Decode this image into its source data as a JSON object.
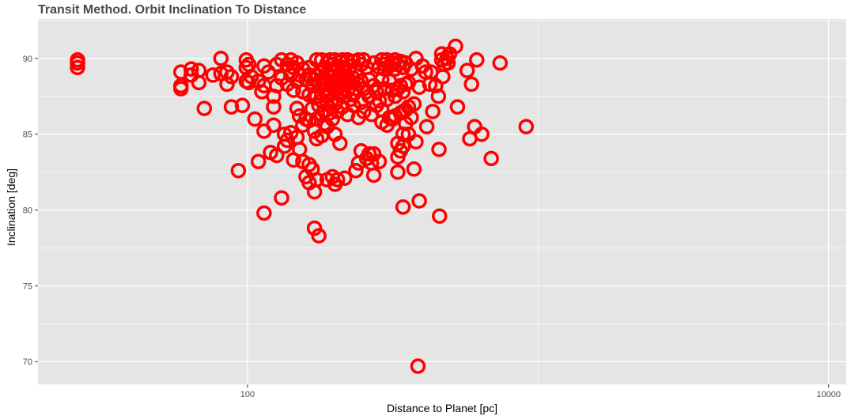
{
  "chart_data": {
    "type": "scatter",
    "title": "Transit Method. Orbit Inclination To Distance",
    "xlabel": "Distance to Planet [pc]",
    "ylabel": "Inclination [deg]",
    "x_scale": "log10",
    "xlim": [
      19,
      11500
    ],
    "ylim": [
      68.5,
      92.6
    ],
    "x_ticks": [
      100,
      10000
    ],
    "x_tick_labels": [
      "100",
      "10000"
    ],
    "y_ticks": [
      70,
      75,
      80,
      85,
      90
    ],
    "y_tick_labels": [
      "70",
      "75",
      "80",
      "85",
      "90"
    ],
    "grid": true,
    "marker": "open-circle",
    "colors": {
      "points": "#ff0000",
      "panel": "#e5e5e5",
      "grid": "#ffffff",
      "axis_text": "#4d4d4d"
    },
    "points": [
      [
        26,
        89.9
      ],
      [
        26,
        89.7
      ],
      [
        26,
        89.4
      ],
      [
        59,
        89.1
      ],
      [
        59,
        88.2
      ],
      [
        59,
        88.0
      ],
      [
        64,
        89.3
      ],
      [
        64,
        88.9
      ],
      [
        68,
        89.2
      ],
      [
        68,
        88.4
      ],
      [
        71,
        86.7
      ],
      [
        76,
        88.9
      ],
      [
        81,
        90.0
      ],
      [
        81,
        89.0
      ],
      [
        85,
        89.1
      ],
      [
        85,
        88.3
      ],
      [
        88,
        88.8
      ],
      [
        88,
        86.8
      ],
      [
        93,
        82.6
      ],
      [
        96,
        86.9
      ],
      [
        99,
        89.9
      ],
      [
        99,
        89.4
      ],
      [
        99,
        88.5
      ],
      [
        101,
        89.6
      ],
      [
        101,
        88.4
      ],
      [
        103,
        88.8
      ],
      [
        106,
        86.0
      ],
      [
        109,
        88.5
      ],
      [
        109,
        83.2
      ],
      [
        112,
        87.8
      ],
      [
        114,
        89.5
      ],
      [
        114,
        88.2
      ],
      [
        114,
        85.2
      ],
      [
        114,
        79.8
      ],
      [
        118,
        89.1
      ],
      [
        120,
        83.8
      ],
      [
        123,
        87.5
      ],
      [
        123,
        86.8
      ],
      [
        123,
        85.6
      ],
      [
        126,
        89.6
      ],
      [
        126,
        88.2
      ],
      [
        126,
        83.6
      ],
      [
        131,
        89.9
      ],
      [
        131,
        88.7
      ],
      [
        131,
        80.8
      ],
      [
        134,
        85.0
      ],
      [
        134,
        84.2
      ],
      [
        137,
        89.6
      ],
      [
        137,
        88.3
      ],
      [
        137,
        84.6
      ],
      [
        141,
        89.9
      ],
      [
        141,
        88.9
      ],
      [
        141,
        85.1
      ],
      [
        144,
        89.4
      ],
      [
        144,
        87.9
      ],
      [
        144,
        83.3
      ],
      [
        148,
        89.7
      ],
      [
        148,
        88.5
      ],
      [
        148,
        86.7
      ],
      [
        148,
        84.8
      ],
      [
        151,
        88.9
      ],
      [
        151,
        86.2
      ],
      [
        151,
        84.0
      ],
      [
        155,
        89.3
      ],
      [
        155,
        87.8
      ],
      [
        155,
        85.6
      ],
      [
        155,
        83.2
      ],
      [
        159,
        88.6
      ],
      [
        159,
        86.0
      ],
      [
        159,
        82.2
      ],
      [
        163,
        89.4
      ],
      [
        163,
        88.9
      ],
      [
        163,
        87.6
      ],
      [
        163,
        85.9
      ],
      [
        163,
        83.0
      ],
      [
        163,
        81.8
      ],
      [
        167,
        88.2
      ],
      [
        167,
        86.7
      ],
      [
        167,
        82.7
      ],
      [
        170,
        88.6
      ],
      [
        170,
        87.4
      ],
      [
        170,
        85.2
      ],
      [
        170,
        81.2
      ],
      [
        170,
        78.8
      ],
      [
        173,
        89.9
      ],
      [
        173,
        88.9
      ],
      [
        173,
        87.5
      ],
      [
        173,
        86.0
      ],
      [
        173,
        84.7
      ],
      [
        173,
        82.0
      ],
      [
        176,
        88.3
      ],
      [
        176,
        86.9
      ],
      [
        176,
        78.3
      ],
      [
        180,
        89.9
      ],
      [
        180,
        89.1
      ],
      [
        180,
        88.2
      ],
      [
        180,
        87.2
      ],
      [
        180,
        86.3
      ],
      [
        180,
        84.9
      ],
      [
        184,
        89.4
      ],
      [
        184,
        88.7
      ],
      [
        184,
        87.9
      ],
      [
        184,
        86.5
      ],
      [
        184,
        85.7
      ],
      [
        188,
        89.7
      ],
      [
        188,
        88.9
      ],
      [
        188,
        88.0
      ],
      [
        188,
        87.0
      ],
      [
        188,
        85.5
      ],
      [
        188,
        82.0
      ],
      [
        192,
        89.9
      ],
      [
        192,
        89.2
      ],
      [
        192,
        88.4
      ],
      [
        192,
        87.7
      ],
      [
        192,
        86.4
      ],
      [
        196,
        89.6
      ],
      [
        196,
        88.8
      ],
      [
        196,
        88.1
      ],
      [
        196,
        87.3
      ],
      [
        196,
        86.0
      ],
      [
        196,
        82.2
      ],
      [
        200,
        89.9
      ],
      [
        200,
        89.1
      ],
      [
        200,
        88.5
      ],
      [
        200,
        87.9
      ],
      [
        200,
        87.0
      ],
      [
        200,
        85.0
      ],
      [
        200,
        81.7
      ],
      [
        204,
        89.5
      ],
      [
        204,
        88.7
      ],
      [
        204,
        88.0
      ],
      [
        204,
        87.3
      ],
      [
        204,
        86.5
      ],
      [
        204,
        82.0
      ],
      [
        208,
        89.8
      ],
      [
        208,
        89.0
      ],
      [
        208,
        88.4
      ],
      [
        208,
        87.6
      ],
      [
        208,
        84.4
      ],
      [
        212,
        89.9
      ],
      [
        212,
        89.2
      ],
      [
        212,
        88.6
      ],
      [
        212,
        87.8
      ],
      [
        212,
        86.8
      ],
      [
        216,
        89.4
      ],
      [
        216,
        88.5
      ],
      [
        216,
        87.5
      ],
      [
        216,
        82.1
      ],
      [
        221,
        89.9
      ],
      [
        221,
        88.8
      ],
      [
        221,
        87.9
      ],
      [
        221,
        86.3
      ],
      [
        226,
        89.5
      ],
      [
        226,
        88.4
      ],
      [
        226,
        87.3
      ],
      [
        231,
        89.8
      ],
      [
        231,
        88.7
      ],
      [
        231,
        87.6
      ],
      [
        231,
        86.9
      ],
      [
        236,
        89.2
      ],
      [
        236,
        88.0
      ],
      [
        236,
        82.6
      ],
      [
        241,
        89.9
      ],
      [
        241,
        88.3
      ],
      [
        241,
        86.1
      ],
      [
        241,
        83.1
      ],
      [
        246,
        89.6
      ],
      [
        246,
        88.5
      ],
      [
        246,
        87.1
      ],
      [
        246,
        83.9
      ],
      [
        251,
        89.9
      ],
      [
        251,
        88.0
      ],
      [
        251,
        86.5
      ],
      [
        257,
        89.4
      ],
      [
        257,
        87.8
      ],
      [
        257,
        83.4
      ],
      [
        262,
        88.6
      ],
      [
        262,
        87.5
      ],
      [
        262,
        83.7
      ],
      [
        267,
        86.3
      ],
      [
        267,
        83.1
      ],
      [
        272,
        89.7
      ],
      [
        272,
        88.2
      ],
      [
        272,
        83.7
      ],
      [
        272,
        82.3
      ],
      [
        278,
        87.8
      ],
      [
        278,
        86.9
      ],
      [
        284,
        89.4
      ],
      [
        284,
        87.2
      ],
      [
        284,
        83.2
      ],
      [
        290,
        89.9
      ],
      [
        290,
        88.6
      ],
      [
        290,
        86.6
      ],
      [
        290,
        85.8
      ],
      [
        296,
        89.6
      ],
      [
        296,
        89.3
      ],
      [
        296,
        88.0
      ],
      [
        302,
        89.9
      ],
      [
        302,
        87.3
      ],
      [
        302,
        85.6
      ],
      [
        308,
        89.5
      ],
      [
        308,
        88.5
      ],
      [
        308,
        86.1
      ],
      [
        315,
        89.7
      ],
      [
        315,
        87.9
      ],
      [
        315,
        86.0
      ],
      [
        322,
        89.9
      ],
      [
        322,
        89.3
      ],
      [
        322,
        87.5
      ],
      [
        322,
        86.2
      ],
      [
        329,
        89.6
      ],
      [
        329,
        88.0
      ],
      [
        329,
        84.4
      ],
      [
        329,
        83.5
      ],
      [
        329,
        82.5
      ],
      [
        336,
        89.8
      ],
      [
        336,
        88.2
      ],
      [
        336,
        86.4
      ],
      [
        336,
        83.9
      ],
      [
        343,
        89.4
      ],
      [
        343,
        87.8
      ],
      [
        343,
        86.5
      ],
      [
        343,
        85.0
      ],
      [
        343,
        84.2
      ],
      [
        343,
        80.2
      ],
      [
        350,
        89.7
      ],
      [
        350,
        88.3
      ],
      [
        350,
        86.6
      ],
      [
        350,
        85.7
      ],
      [
        358,
        88.4
      ],
      [
        358,
        86.8
      ],
      [
        358,
        85.0
      ],
      [
        366,
        89.3
      ],
      [
        366,
        86.1
      ],
      [
        374,
        87.0
      ],
      [
        374,
        82.7
      ],
      [
        380,
        90.0
      ],
      [
        380,
        84.5
      ],
      [
        386,
        69.7
      ],
      [
        390,
        80.6
      ],
      [
        390,
        88.1
      ],
      [
        400,
        89.5
      ],
      [
        410,
        89.1
      ],
      [
        414,
        85.5
      ],
      [
        424,
        88.3
      ],
      [
        428,
        89.1
      ],
      [
        434,
        86.5
      ],
      [
        444,
        88.2
      ],
      [
        454,
        87.5
      ],
      [
        456,
        84.0
      ],
      [
        458,
        79.6
      ],
      [
        466,
        90.3
      ],
      [
        466,
        89.9
      ],
      [
        470,
        88.8
      ],
      [
        476,
        89.6
      ],
      [
        486,
        90.0
      ],
      [
        490,
        89.7
      ],
      [
        496,
        90.3
      ],
      [
        520,
        90.8
      ],
      [
        528,
        86.8
      ],
      [
        570,
        89.2
      ],
      [
        582,
        84.7
      ],
      [
        590,
        88.3
      ],
      [
        605,
        85.5
      ],
      [
        615,
        89.9
      ],
      [
        640,
        85.0
      ],
      [
        690,
        83.4
      ],
      [
        740,
        89.7
      ],
      [
        910,
        85.5
      ]
    ]
  }
}
